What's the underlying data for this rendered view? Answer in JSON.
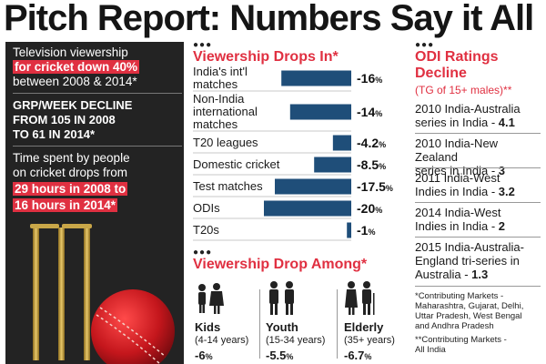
{
  "title": "Pitch Report: Numbers Say it All",
  "left_panel": {
    "block1_line1": "Television viewership",
    "block1_hl": "for cricket down 40%",
    "block1_line3": "between 2008 & 2014*",
    "block2_line1": "GRP/WEEK DECLINE",
    "block2_line2": "FROM 105 IN 2008",
    "block2_line3": "TO 61 IN 2014*",
    "block3_line1": "Time spent by people",
    "block3_line2": "on cricket drops from",
    "block3_hl1": "29 hours in 2008 to",
    "block3_hl2": "16 hours in 2014*"
  },
  "middle": {
    "dots": "●●●",
    "drops_in_heading": "Viewership Drops In*",
    "drop_among_heading": "Viewership Drop Among*"
  },
  "chart_data": {
    "type": "bar",
    "orientation": "horizontal",
    "title": "Viewership Drops In*",
    "categories": [
      [
        "India's int'l",
        "matches"
      ],
      [
        "Non-India",
        "international",
        "matches"
      ],
      [
        "T20 leagues"
      ],
      [
        "Domestic cricket"
      ],
      [
        "Test matches"
      ],
      [
        "ODIs"
      ],
      [
        "T20s"
      ]
    ],
    "values": [
      -16,
      -14,
      -4.2,
      -8.5,
      -17.5,
      -20,
      -1
    ],
    "value_labels": [
      "-16",
      "-14",
      "-4.2",
      "-8.5",
      "-17.5",
      "-20",
      "-1"
    ],
    "unit": "%",
    "xlim": [
      -20,
      0
    ],
    "bar_color": "#1f4e79"
  },
  "age_groups": [
    {
      "group": "Kids",
      "range": "(4-14 years)",
      "value": "-6",
      "unit": "%"
    },
    {
      "group": "Youth",
      "range": "(15-34 years)",
      "value": "-5.5",
      "unit": "%"
    },
    {
      "group": "Elderly",
      "range": "(35+ years)",
      "value": "-6.7",
      "unit": "%"
    }
  ],
  "right": {
    "dots": "●●●",
    "heading1": "ODI Ratings",
    "heading2": "Decline",
    "subheading": "(TG of 15+ males)**",
    "items": [
      {
        "l1": "2010 India-Australia",
        "l2": "series in India - ",
        "val": "4.1"
      },
      {
        "l1": "2010 India-New Zealand",
        "l2": "series in India - ",
        "val": "3"
      },
      {
        "l1": "2011 India-West",
        "l2": "Indies in India - ",
        "val": "3.2"
      },
      {
        "l1": "2014 India-West",
        "l2": "Indies in India - ",
        "val": "2"
      },
      {
        "l1": "2015 India-Australia-",
        "l2": "England tri-series in",
        "l3": "Australia - ",
        "val": "1.3"
      }
    ],
    "foot1": [
      "*Contributing Markets -",
      "Maharashtra, Gujarat, Delhi,",
      "Uttar Pradesh, West Bengal",
      "and Andhra Pradesh"
    ],
    "foot2": [
      "**Contributing Markets -",
      "All India"
    ]
  },
  "colors": {
    "accent": "#e03041",
    "bar": "#1f4e79",
    "panel": "#232323"
  }
}
